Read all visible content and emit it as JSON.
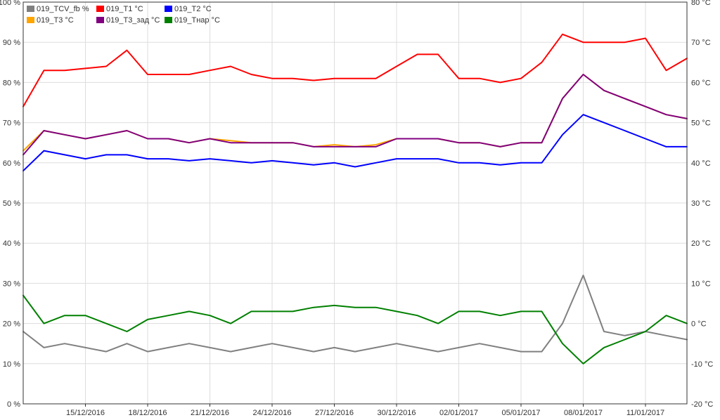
{
  "chart_data": {
    "type": "line",
    "title": "",
    "xlabel": "",
    "x_range": [
      "2016-12-12",
      "2017-01-13"
    ],
    "x_ticks": [
      "15/12/2016",
      "18/12/2016",
      "21/12/2016",
      "24/12/2016",
      "27/12/2016",
      "30/12/2016",
      "02/01/2017",
      "05/01/2017",
      "08/01/2017",
      "11/01/2017"
    ],
    "y_left": {
      "range": [
        0,
        100
      ],
      "unit": "%",
      "ticks": [
        "0 %",
        "10 %",
        "20 %",
        "30 %",
        "40 %",
        "50 %",
        "60 %",
        "70 %",
        "80 %",
        "90 %",
        "100 %"
      ]
    },
    "y_right": {
      "range": [
        -20,
        80
      ],
      "unit": "°C",
      "ticks": [
        "-20 °C",
        "-10 °C",
        "0 °C",
        "10 °C",
        "20 °C",
        "30 °C",
        "40 °C",
        "50 °C",
        "60 °C",
        "70 °C",
        "80 °C"
      ]
    },
    "grid": true,
    "legend_position": "top-left",
    "series": [
      {
        "name": "019_TCV_fb %",
        "color": "#808080",
        "axis": "left",
        "x": [
          "2016-12-12",
          "2016-12-13",
          "2016-12-14",
          "2016-12-15",
          "2016-12-16",
          "2016-12-17",
          "2016-12-18",
          "2016-12-19",
          "2016-12-20",
          "2016-12-21",
          "2016-12-22",
          "2016-12-23",
          "2016-12-24",
          "2016-12-25",
          "2016-12-26",
          "2016-12-27",
          "2016-12-28",
          "2016-12-29",
          "2016-12-30",
          "2016-12-31",
          "2017-01-01",
          "2017-01-02",
          "2017-01-03",
          "2017-01-04",
          "2017-01-05",
          "2017-01-06",
          "2017-01-07",
          "2017-01-08",
          "2017-01-09",
          "2017-01-10",
          "2017-01-11",
          "2017-01-12",
          "2017-01-13"
        ],
        "values": [
          18,
          14,
          15,
          14,
          13,
          15,
          13,
          14,
          15,
          14,
          13,
          14,
          15,
          14,
          13,
          14,
          13,
          14,
          15,
          14,
          13,
          14,
          15,
          14,
          13,
          13,
          20,
          32,
          18,
          17,
          18,
          17,
          16
        ]
      },
      {
        "name": "019_T1 °C",
        "color": "#ff0000",
        "axis": "right",
        "x": [
          "2016-12-12",
          "2016-12-13",
          "2016-12-14",
          "2016-12-15",
          "2016-12-16",
          "2016-12-17",
          "2016-12-18",
          "2016-12-19",
          "2016-12-20",
          "2016-12-21",
          "2016-12-22",
          "2016-12-23",
          "2016-12-24",
          "2016-12-25",
          "2016-12-26",
          "2016-12-27",
          "2016-12-28",
          "2016-12-29",
          "2016-12-30",
          "2016-12-31",
          "2017-01-01",
          "2017-01-02",
          "2017-01-03",
          "2017-01-04",
          "2017-01-05",
          "2017-01-06",
          "2017-01-07",
          "2017-01-08",
          "2017-01-09",
          "2017-01-10",
          "2017-01-11",
          "2017-01-12",
          "2017-01-13"
        ],
        "values": [
          54,
          63,
          63,
          63.5,
          64,
          68,
          62,
          62,
          62,
          63,
          64,
          62,
          61,
          61,
          60.5,
          61,
          61,
          61,
          64,
          67,
          67,
          61,
          61,
          60,
          61,
          65,
          72,
          70,
          70,
          70,
          71,
          63,
          66
        ]
      },
      {
        "name": "019_T2 °C",
        "color": "#0000ff",
        "axis": "right",
        "x": [
          "2016-12-12",
          "2016-12-13",
          "2016-12-14",
          "2016-12-15",
          "2016-12-16",
          "2016-12-17",
          "2016-12-18",
          "2016-12-19",
          "2016-12-20",
          "2016-12-21",
          "2016-12-22",
          "2016-12-23",
          "2016-12-24",
          "2016-12-25",
          "2016-12-26",
          "2016-12-27",
          "2016-12-28",
          "2016-12-29",
          "2016-12-30",
          "2016-12-31",
          "2017-01-01",
          "2017-01-02",
          "2017-01-03",
          "2017-01-04",
          "2017-01-05",
          "2017-01-06",
          "2017-01-07",
          "2017-01-08",
          "2017-01-09",
          "2017-01-10",
          "2017-01-11",
          "2017-01-12",
          "2017-01-13"
        ],
        "values": [
          38,
          43,
          42,
          41,
          42,
          42,
          41,
          41,
          40.5,
          41,
          40.5,
          40,
          40.5,
          40,
          39.5,
          40,
          39,
          40,
          41,
          41,
          41,
          40,
          40,
          39.5,
          40,
          40,
          47,
          52,
          50,
          48,
          46,
          44,
          44
        ]
      },
      {
        "name": "019_T3 °C",
        "color": "#ffa500",
        "axis": "right",
        "x": [
          "2016-12-12",
          "2016-12-13",
          "2016-12-14",
          "2016-12-15",
          "2016-12-16",
          "2016-12-17",
          "2016-12-18",
          "2016-12-19",
          "2016-12-20",
          "2016-12-21",
          "2016-12-22",
          "2016-12-23",
          "2016-12-24",
          "2016-12-25",
          "2016-12-26",
          "2016-12-27",
          "2016-12-28",
          "2016-12-29",
          "2016-12-30",
          "2016-12-31",
          "2017-01-01",
          "2017-01-02",
          "2017-01-03",
          "2017-01-04",
          "2017-01-05",
          "2017-01-06",
          "2017-01-07",
          "2017-01-08",
          "2017-01-09",
          "2017-01-10",
          "2017-01-11",
          "2017-01-12",
          "2017-01-13"
        ],
        "values": [
          43,
          48,
          47,
          46,
          47,
          48,
          46,
          46,
          45,
          46,
          45.5,
          45,
          45,
          45,
          44,
          44.5,
          44,
          44.5,
          46,
          46,
          46,
          45,
          45,
          44,
          45,
          45,
          56,
          62,
          58,
          56,
          54,
          52,
          51
        ]
      },
      {
        "name": "019_T3_зад °C",
        "color": "#800080",
        "axis": "right",
        "x": [
          "2016-12-12",
          "2016-12-13",
          "2016-12-14",
          "2016-12-15",
          "2016-12-16",
          "2016-12-17",
          "2016-12-18",
          "2016-12-19",
          "2016-12-20",
          "2016-12-21",
          "2016-12-22",
          "2016-12-23",
          "2016-12-24",
          "2016-12-25",
          "2016-12-26",
          "2016-12-27",
          "2016-12-28",
          "2016-12-29",
          "2016-12-30",
          "2016-12-31",
          "2017-01-01",
          "2017-01-02",
          "2017-01-03",
          "2017-01-04",
          "2017-01-05",
          "2017-01-06",
          "2017-01-07",
          "2017-01-08",
          "2017-01-09",
          "2017-01-10",
          "2017-01-11",
          "2017-01-12",
          "2017-01-13"
        ],
        "values": [
          42,
          48,
          47,
          46,
          47,
          48,
          46,
          46,
          45,
          46,
          45,
          45,
          45,
          45,
          44,
          44,
          44,
          44,
          46,
          46,
          46,
          45,
          45,
          44,
          45,
          45,
          56,
          62,
          58,
          56,
          54,
          52,
          51
        ]
      },
      {
        "name": "019_Тнар °C",
        "color": "#008000",
        "axis": "right",
        "x": [
          "2016-12-12",
          "2016-12-13",
          "2016-12-14",
          "2016-12-15",
          "2016-12-16",
          "2016-12-17",
          "2016-12-18",
          "2016-12-19",
          "2016-12-20",
          "2016-12-21",
          "2016-12-22",
          "2016-12-23",
          "2016-12-24",
          "2016-12-25",
          "2016-12-26",
          "2016-12-27",
          "2016-12-28",
          "2016-12-29",
          "2016-12-30",
          "2016-12-31",
          "2017-01-01",
          "2017-01-02",
          "2017-01-03",
          "2017-01-04",
          "2017-01-05",
          "2017-01-06",
          "2017-01-07",
          "2017-01-08",
          "2017-01-09",
          "2017-01-10",
          "2017-01-11",
          "2017-01-12",
          "2017-01-13"
        ],
        "values": [
          7,
          0,
          2,
          2,
          0,
          -2,
          1,
          2,
          3,
          2,
          0,
          3,
          3,
          3,
          4,
          4.5,
          4,
          4,
          3,
          2,
          0,
          3,
          3,
          2,
          3,
          3,
          -5,
          -10,
          -6,
          -4,
          -2,
          2,
          0
        ]
      }
    ]
  }
}
